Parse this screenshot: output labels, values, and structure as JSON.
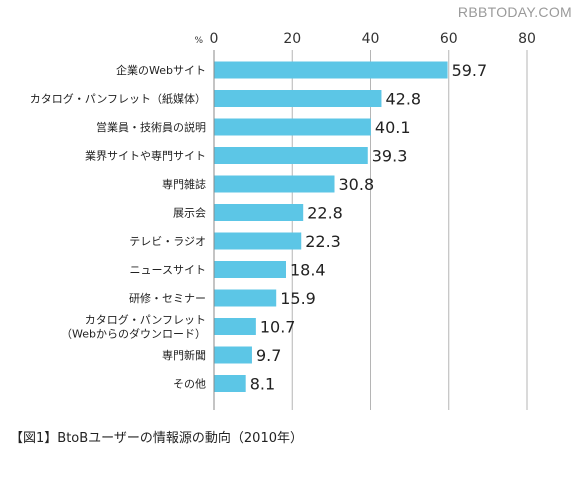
{
  "watermark": "RBBTODAY.COM",
  "caption": "【図1】BtoBユーザーの情報源の動向（2010年）",
  "chart_data": {
    "type": "bar",
    "orientation": "horizontal",
    "unit": "%",
    "xlim": [
      0,
      80
    ],
    "ticks": [
      0,
      20,
      40,
      60,
      80
    ],
    "grid": true,
    "bar_color": "#5cc6e6",
    "categories": [
      [
        "企業のWebサイト"
      ],
      [
        "カタログ・パンフレット（紙媒体）"
      ],
      [
        "営業員・技術員の説明"
      ],
      [
        "業界サイトや専門サイト"
      ],
      [
        "専門雑誌"
      ],
      [
        "展示会"
      ],
      [
        "テレビ・ラジオ"
      ],
      [
        "ニュースサイト"
      ],
      [
        "研修・セミナー"
      ],
      [
        "カタログ・パンフレット",
        "（Webからのダウンロード）"
      ],
      [
        "専門新聞"
      ],
      [
        "その他"
      ]
    ],
    "values": [
      59.7,
      42.8,
      40.1,
      39.3,
      30.8,
      22.8,
      22.3,
      18.4,
      15.9,
      10.7,
      9.7,
      8.1
    ]
  }
}
